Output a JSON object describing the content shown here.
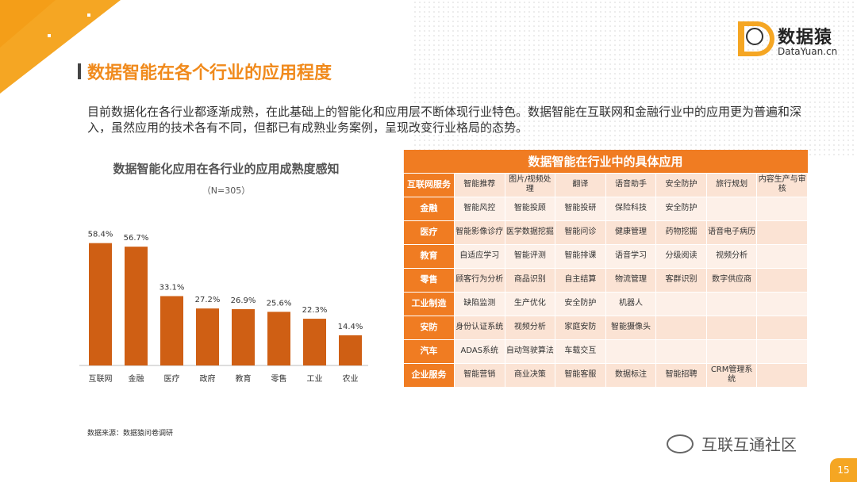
{
  "brand": {
    "name": "数据猿",
    "url": "DataYuan.cn"
  },
  "page_title": "数据智能在各个行业的应用程度",
  "intro": "目前数据化在各行业都逐渐成熟，在此基础上的智能化和应用层不断体现行业特色。数据智能在互联网和金融行业中的应用更为普遍和深入，虽然应用的技术各有不同，但都已有成熟业务案例，呈现改变行业格局的态势。",
  "source": "数据来源：数据猿问卷调研",
  "watermark": "互联互通社区",
  "page_number": "15",
  "colors": {
    "accent": "#f08a1c",
    "bar": "#cf5f14",
    "table_header": "#f07c22",
    "corner": "#f5a623"
  },
  "chart_data": {
    "type": "bar",
    "title": "数据智能化应用在各行业的应用成熟度感知",
    "subtitle": "（N=305）",
    "categories": [
      "互联网",
      "金融",
      "医疗",
      "政府",
      "教育",
      "零售",
      "工业",
      "农业"
    ],
    "values": [
      58.4,
      56.7,
      33.1,
      27.2,
      26.9,
      25.6,
      22.3,
      14.4
    ],
    "data_labels": [
      "58.4%",
      "56.7%",
      "33.1%",
      "27.2%",
      "26.9%",
      "25.6%",
      "22.3%",
      "14.4%"
    ],
    "unit": "%",
    "ylim": [
      0,
      70
    ],
    "grid": false,
    "xlabel": "",
    "ylabel": ""
  },
  "table": {
    "title": "数据智能在行业中的具体应用",
    "rows": [
      {
        "industry": "互联网服务",
        "apps": [
          "智能推荐",
          "图片/视频处理",
          "翻译",
          "语音助手",
          "安全防护",
          "旅行规划",
          "内容生产与审核"
        ]
      },
      {
        "industry": "金融",
        "apps": [
          "智能风控",
          "智能投顾",
          "智能投研",
          "保险科技",
          "安全防护",
          "",
          ""
        ]
      },
      {
        "industry": "医疗",
        "apps": [
          "智能影像诊疗",
          "医学数据挖掘",
          "智能问诊",
          "健康管理",
          "药物挖掘",
          "语音电子病历",
          ""
        ]
      },
      {
        "industry": "教育",
        "apps": [
          "自适应学习",
          "智能评测",
          "智能排课",
          "语音学习",
          "分级阅读",
          "视频分析",
          ""
        ]
      },
      {
        "industry": "零售",
        "apps": [
          "顾客行为分析",
          "商品识别",
          "自主结算",
          "物流管理",
          "客群识别",
          "数字供应商",
          ""
        ]
      },
      {
        "industry": "工业制造",
        "apps": [
          "缺陷监测",
          "生产优化",
          "安全防护",
          "机器人",
          "",
          "",
          ""
        ]
      },
      {
        "industry": "安防",
        "apps": [
          "身份认证系统",
          "视频分析",
          "家庭安防",
          "智能摄像头",
          "",
          "",
          ""
        ]
      },
      {
        "industry": "汽车",
        "apps": [
          "ADAS系统",
          "自动驾驶算法",
          "车载交互",
          "",
          "",
          "",
          ""
        ]
      },
      {
        "industry": "企业服务",
        "apps": [
          "智能营销",
          "商业决策",
          "智能客服",
          "数据标注",
          "智能招聘",
          "CRM管理系统",
          ""
        ]
      }
    ]
  }
}
